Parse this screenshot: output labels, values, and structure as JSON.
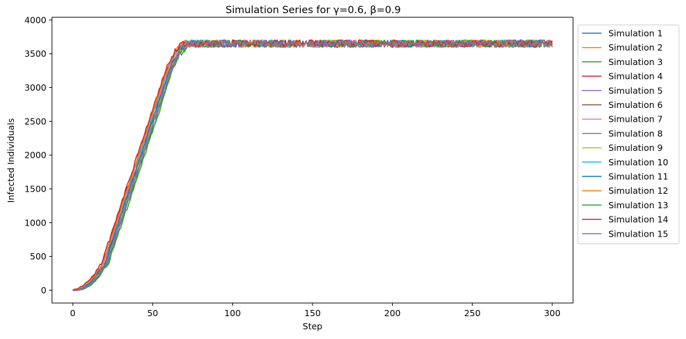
{
  "chart_data": {
    "type": "line",
    "title": "Simulation Series for γ=0.6, β=0.9",
    "xlabel": "Step",
    "ylabel": "Infected Individuals",
    "xlim": [
      -13,
      313
    ],
    "ylim": [
      -190,
      4040
    ],
    "xticks": [
      0,
      50,
      100,
      150,
      200,
      250,
      300
    ],
    "yticks": [
      0,
      500,
      1000,
      1500,
      2000,
      2500,
      3000,
      3500,
      4000
    ],
    "grid": false,
    "legend_position": "outside-right",
    "steps": 300,
    "plateau": 3650,
    "series": [
      {
        "name": "Simulation 1",
        "color": "#1f77b4",
        "offset": 0
      },
      {
        "name": "Simulation 2",
        "color": "#ff7f0e",
        "offset": -1
      },
      {
        "name": "Simulation 3",
        "color": "#2ca02c",
        "offset": 2
      },
      {
        "name": "Simulation 4",
        "color": "#d62728",
        "offset": -1.5
      },
      {
        "name": "Simulation 5",
        "color": "#9467bd",
        "offset": 0.5
      },
      {
        "name": "Simulation 6",
        "color": "#8c564b",
        "offset": 1
      },
      {
        "name": "Simulation 7",
        "color": "#e377c2",
        "offset": -0.5
      },
      {
        "name": "Simulation 8",
        "color": "#7f7f7f",
        "offset": 1.5
      },
      {
        "name": "Simulation 9",
        "color": "#bcbd22",
        "offset": 0.8
      },
      {
        "name": "Simulation 10",
        "color": "#17becf",
        "offset": -0.8
      },
      {
        "name": "Simulation 11",
        "color": "#1f77b4",
        "offset": 0.3
      },
      {
        "name": "Simulation 12",
        "color": "#ff7f0e",
        "offset": -1.2
      },
      {
        "name": "Simulation 13",
        "color": "#2ca02c",
        "offset": 2.5
      },
      {
        "name": "Simulation 14",
        "color": "#d62728",
        "offset": -2
      },
      {
        "name": "Simulation 15",
        "color": "#9467bd",
        "offset": 1.2
      }
    ]
  }
}
